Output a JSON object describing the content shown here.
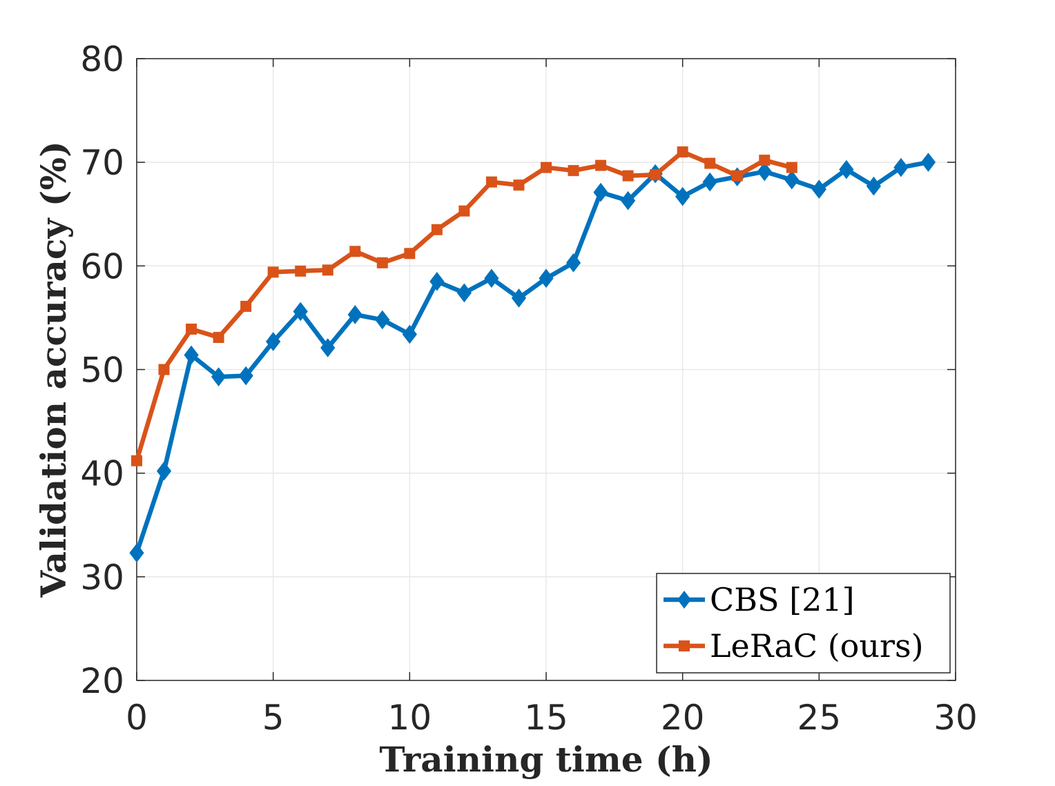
{
  "chart_data": {
    "type": "line",
    "title": "",
    "xlabel": "Training time (h)",
    "ylabel": "Validation accuracy (%)",
    "xlim": [
      0,
      30
    ],
    "ylim": [
      20,
      80
    ],
    "xticks": [
      "0",
      "5",
      "10",
      "15",
      "20",
      "25",
      "30"
    ],
    "yticks": [
      "20",
      "30",
      "40",
      "50",
      "60",
      "70",
      "80"
    ],
    "grid": true,
    "legend_position": "bottom-right",
    "series": [
      {
        "name": "CBS [21]",
        "color": "#0072BD",
        "marker": "diamond",
        "x": [
          0,
          1,
          2,
          3,
          4,
          5,
          6,
          7,
          8,
          9,
          10,
          11,
          12,
          13,
          14,
          15,
          16,
          17,
          18,
          19,
          20,
          21,
          22,
          23,
          24,
          25,
          26,
          27,
          28,
          29
        ],
        "values": [
          32.3,
          40.2,
          51.4,
          49.3,
          49.4,
          52.7,
          55.6,
          52.1,
          55.3,
          54.8,
          53.4,
          58.5,
          57.4,
          58.8,
          56.9,
          58.8,
          60.3,
          67.1,
          66.3,
          68.9,
          66.7,
          68.1,
          68.6,
          69.1,
          68.3,
          67.4,
          69.3,
          67.7,
          69.5,
          70.0
        ]
      },
      {
        "name": "LeRaC (ours)",
        "color": "#D95319",
        "marker": "square",
        "x": [
          0,
          1,
          2,
          3,
          4,
          5,
          6,
          7,
          8,
          9,
          10,
          11,
          12,
          13,
          14,
          15,
          16,
          17,
          18,
          19,
          20,
          21,
          22,
          23,
          24
        ],
        "values": [
          41.2,
          50.0,
          53.9,
          53.1,
          56.1,
          59.4,
          59.5,
          59.6,
          61.4,
          60.3,
          61.2,
          63.5,
          65.3,
          68.1,
          67.8,
          69.5,
          69.2,
          69.7,
          68.7,
          68.8,
          71.0,
          69.9,
          68.7,
          70.2,
          69.5
        ]
      }
    ]
  }
}
